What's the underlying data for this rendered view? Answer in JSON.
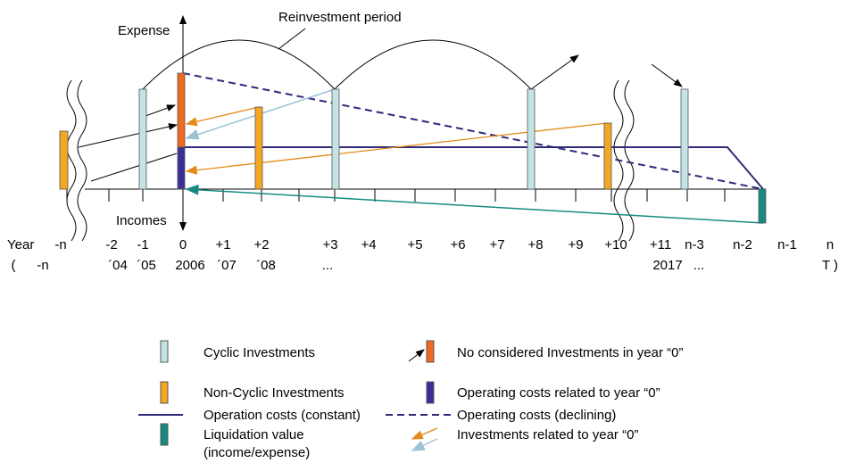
{
  "header": {
    "reinvestment": "Reinvestment period",
    "expense": "Expense",
    "incomes": "Incomes",
    "year": "Year"
  },
  "years": [
    "-n",
    "-2",
    "-1",
    "0",
    "+1",
    "+2",
    "+3",
    "+4",
    "+5",
    "+6",
    "+7",
    "+8",
    "+9",
    "+10",
    "+11",
    "n-3",
    "n-2",
    "n-1",
    "n"
  ],
  "years2": [
    "(",
    "-n",
    "´04",
    "´05",
    "2006",
    "´07",
    "´08",
    "...",
    "2017",
    "...",
    "T )"
  ],
  "legend": {
    "constant": "Operation costs (constant)",
    "declining": "Operating costs (declining)",
    "cyclic": "Cyclic Investments",
    "not_considered": "No considered Investments in year “0”",
    "non_cyclic": "Non-Cyclic Investments",
    "op_year0": "Operating costs related to year “0”",
    "liquidation": [
      "Liquidation value",
      "(income/expense)"
    ],
    "inv_year0": "Investments related to year “0”"
  }
}
